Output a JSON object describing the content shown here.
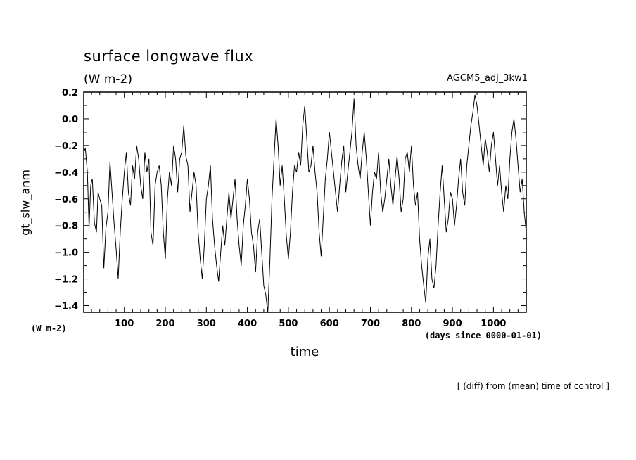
{
  "chart_data": {
    "type": "line",
    "title": "surface longwave flux",
    "units": "(W m-2)",
    "experiment": "AGCM5_adj_3kw1",
    "ylabel": "gt_slw_anm",
    "ylabel_units": "(W m-2)",
    "xlabel": "time",
    "xlabel_units": "(days since 0000-01-01)",
    "note": "[ (diff) from (mean) time of control ]",
    "xlim": [
      1,
      1080
    ],
    "ylim": [
      -1.45,
      0.2
    ],
    "xticks": [
      100,
      200,
      300,
      400,
      500,
      600,
      700,
      800,
      900,
      1000
    ],
    "xtick_labels": [
      "100",
      "200",
      "300",
      "400",
      "500",
      "600",
      "700",
      "800",
      "900",
      "1000"
    ],
    "yticks": [
      0.2,
      0.0,
      -0.2,
      -0.4,
      -0.6,
      -0.8,
      -1.0,
      -1.2,
      -1.4
    ],
    "ytick_labels": [
      "0.2",
      "0.0",
      "−0.2",
      "−0.4",
      "−0.6",
      "−0.8",
      "−1.0",
      "−1.2",
      "−1.4"
    ],
    "grid": false,
    "series": [
      {
        "points": [
          [
            1,
            -0.25
          ],
          [
            5,
            -0.22
          ],
          [
            10,
            -0.4
          ],
          [
            14,
            -0.82
          ],
          [
            18,
            -0.5
          ],
          [
            22,
            -0.45
          ],
          [
            27,
            -0.78
          ],
          [
            32,
            -0.85
          ],
          [
            36,
            -0.55
          ],
          [
            40,
            -0.6
          ],
          [
            45,
            -0.65
          ],
          [
            50,
            -1.12
          ],
          [
            55,
            -0.82
          ],
          [
            60,
            -0.7
          ],
          [
            65,
            -0.32
          ],
          [
            70,
            -0.55
          ],
          [
            75,
            -0.78
          ],
          [
            80,
            -0.98
          ],
          [
            85,
            -1.2
          ],
          [
            90,
            -0.85
          ],
          [
            95,
            -0.6
          ],
          [
            100,
            -0.4
          ],
          [
            105,
            -0.25
          ],
          [
            110,
            -0.55
          ],
          [
            115,
            -0.65
          ],
          [
            120,
            -0.35
          ],
          [
            125,
            -0.45
          ],
          [
            130,
            -0.2
          ],
          [
            135,
            -0.3
          ],
          [
            140,
            -0.5
          ],
          [
            145,
            -0.6
          ],
          [
            150,
            -0.25
          ],
          [
            155,
            -0.4
          ],
          [
            160,
            -0.3
          ],
          [
            165,
            -0.85
          ],
          [
            170,
            -0.95
          ],
          [
            175,
            -0.5
          ],
          [
            180,
            -0.4
          ],
          [
            185,
            -0.35
          ],
          [
            190,
            -0.5
          ],
          [
            195,
            -0.85
          ],
          [
            200,
            -1.05
          ],
          [
            205,
            -0.6
          ],
          [
            210,
            -0.4
          ],
          [
            215,
            -0.5
          ],
          [
            220,
            -0.2
          ],
          [
            225,
            -0.3
          ],
          [
            230,
            -0.55
          ],
          [
            235,
            -0.3
          ],
          [
            240,
            -0.25
          ],
          [
            245,
            -0.05
          ],
          [
            250,
            -0.28
          ],
          [
            255,
            -0.35
          ],
          [
            260,
            -0.7
          ],
          [
            265,
            -0.55
          ],
          [
            270,
            -0.4
          ],
          [
            275,
            -0.5
          ],
          [
            280,
            -0.85
          ],
          [
            285,
            -1.05
          ],
          [
            290,
            -1.2
          ],
          [
            295,
            -0.95
          ],
          [
            300,
            -0.6
          ],
          [
            305,
            -0.5
          ],
          [
            310,
            -0.35
          ],
          [
            315,
            -0.75
          ],
          [
            320,
            -0.95
          ],
          [
            325,
            -1.1
          ],
          [
            330,
            -1.22
          ],
          [
            335,
            -1.0
          ],
          [
            340,
            -0.8
          ],
          [
            345,
            -0.95
          ],
          [
            350,
            -0.75
          ],
          [
            355,
            -0.55
          ],
          [
            360,
            -0.75
          ],
          [
            365,
            -0.6
          ],
          [
            370,
            -0.45
          ],
          [
            375,
            -0.75
          ],
          [
            380,
            -0.95
          ],
          [
            385,
            -1.1
          ],
          [
            390,
            -0.8
          ],
          [
            395,
            -0.65
          ],
          [
            400,
            -0.45
          ],
          [
            405,
            -0.6
          ],
          [
            410,
            -0.85
          ],
          [
            415,
            -0.95
          ],
          [
            420,
            -1.15
          ],
          [
            425,
            -0.85
          ],
          [
            430,
            -0.75
          ],
          [
            435,
            -1.0
          ],
          [
            440,
            -1.25
          ],
          [
            445,
            -1.32
          ],
          [
            450,
            -1.45
          ],
          [
            455,
            -1.05
          ],
          [
            460,
            -0.6
          ],
          [
            465,
            -0.3
          ],
          [
            470,
            0.0
          ],
          [
            475,
            -0.2
          ],
          [
            480,
            -0.5
          ],
          [
            485,
            -0.35
          ],
          [
            490,
            -0.6
          ],
          [
            495,
            -0.88
          ],
          [
            500,
            -1.05
          ],
          [
            505,
            -0.85
          ],
          [
            510,
            -0.55
          ],
          [
            515,
            -0.35
          ],
          [
            520,
            -0.4
          ],
          [
            525,
            -0.25
          ],
          [
            530,
            -0.35
          ],
          [
            535,
            -0.05
          ],
          [
            540,
            0.1
          ],
          [
            545,
            -0.15
          ],
          [
            550,
            -0.4
          ],
          [
            555,
            -0.35
          ],
          [
            560,
            -0.2
          ],
          [
            565,
            -0.4
          ],
          [
            570,
            -0.55
          ],
          [
            575,
            -0.85
          ],
          [
            580,
            -1.03
          ],
          [
            585,
            -0.75
          ],
          [
            590,
            -0.45
          ],
          [
            595,
            -0.3
          ],
          [
            600,
            -0.1
          ],
          [
            605,
            -0.25
          ],
          [
            610,
            -0.4
          ],
          [
            615,
            -0.55
          ],
          [
            620,
            -0.7
          ],
          [
            625,
            -0.5
          ],
          [
            630,
            -0.32
          ],
          [
            635,
            -0.2
          ],
          [
            640,
            -0.55
          ],
          [
            645,
            -0.4
          ],
          [
            650,
            -0.25
          ],
          [
            655,
            -0.1
          ],
          [
            660,
            0.15
          ],
          [
            665,
            -0.2
          ],
          [
            670,
            -0.35
          ],
          [
            675,
            -0.45
          ],
          [
            680,
            -0.25
          ],
          [
            685,
            -0.1
          ],
          [
            690,
            -0.3
          ],
          [
            695,
            -0.55
          ],
          [
            700,
            -0.8
          ],
          [
            705,
            -0.55
          ],
          [
            710,
            -0.4
          ],
          [
            715,
            -0.45
          ],
          [
            720,
            -0.25
          ],
          [
            725,
            -0.55
          ],
          [
            730,
            -0.7
          ],
          [
            735,
            -0.6
          ],
          [
            740,
            -0.45
          ],
          [
            745,
            -0.3
          ],
          [
            750,
            -0.5
          ],
          [
            755,
            -0.65
          ],
          [
            760,
            -0.45
          ],
          [
            765,
            -0.28
          ],
          [
            770,
            -0.45
          ],
          [
            775,
            -0.7
          ],
          [
            780,
            -0.6
          ],
          [
            785,
            -0.3
          ],
          [
            790,
            -0.25
          ],
          [
            795,
            -0.4
          ],
          [
            800,
            -0.2
          ],
          [
            805,
            -0.5
          ],
          [
            810,
            -0.65
          ],
          [
            815,
            -0.55
          ],
          [
            820,
            -0.9
          ],
          [
            825,
            -1.1
          ],
          [
            830,
            -1.25
          ],
          [
            835,
            -1.38
          ],
          [
            840,
            -1.05
          ],
          [
            845,
            -0.9
          ],
          [
            850,
            -1.2
          ],
          [
            855,
            -1.27
          ],
          [
            860,
            -1.1
          ],
          [
            865,
            -0.8
          ],
          [
            870,
            -0.55
          ],
          [
            875,
            -0.35
          ],
          [
            880,
            -0.6
          ],
          [
            885,
            -0.85
          ],
          [
            890,
            -0.75
          ],
          [
            895,
            -0.55
          ],
          [
            900,
            -0.6
          ],
          [
            905,
            -0.8
          ],
          [
            910,
            -0.65
          ],
          [
            915,
            -0.45
          ],
          [
            920,
            -0.3
          ],
          [
            925,
            -0.55
          ],
          [
            930,
            -0.65
          ],
          [
            935,
            -0.35
          ],
          [
            940,
            -0.2
          ],
          [
            945,
            -0.05
          ],
          [
            950,
            0.05
          ],
          [
            955,
            0.18
          ],
          [
            960,
            0.1
          ],
          [
            965,
            -0.05
          ],
          [
            970,
            -0.2
          ],
          [
            975,
            -0.35
          ],
          [
            980,
            -0.15
          ],
          [
            985,
            -0.25
          ],
          [
            990,
            -0.4
          ],
          [
            995,
            -0.2
          ],
          [
            1000,
            -0.1
          ],
          [
            1005,
            -0.3
          ],
          [
            1010,
            -0.5
          ],
          [
            1015,
            -0.35
          ],
          [
            1020,
            -0.55
          ],
          [
            1025,
            -0.7
          ],
          [
            1030,
            -0.5
          ],
          [
            1035,
            -0.6
          ],
          [
            1040,
            -0.3
          ],
          [
            1045,
            -0.1
          ],
          [
            1050,
            0.0
          ],
          [
            1055,
            -0.15
          ],
          [
            1060,
            -0.35
          ],
          [
            1065,
            -0.55
          ],
          [
            1070,
            -0.45
          ],
          [
            1075,
            -0.7
          ],
          [
            1080,
            -0.85
          ]
        ]
      }
    ]
  }
}
